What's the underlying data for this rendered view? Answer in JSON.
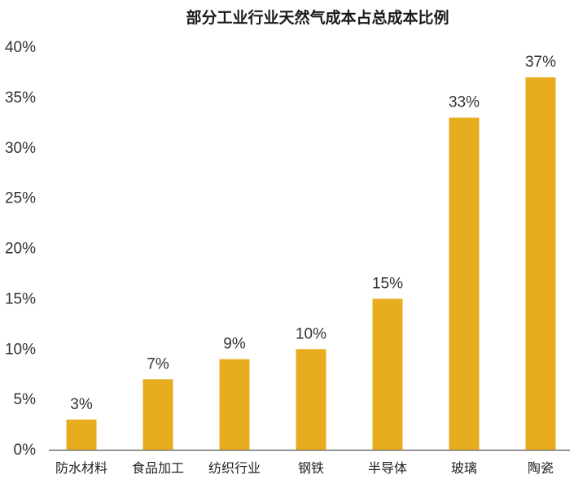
{
  "chart_data": {
    "type": "bar",
    "title": "部分工业行业天然气成本占总成本比例",
    "xlabel": "",
    "ylabel": "",
    "categories": [
      "防水材料",
      "食品加工",
      "纺织行业",
      "钢铁",
      "半导体",
      "玻璃",
      "陶瓷"
    ],
    "values": [
      3,
      7,
      9,
      10,
      15,
      33,
      37
    ],
    "value_labels": [
      "3%",
      "7%",
      "9%",
      "10%",
      "15%",
      "33%",
      "37%"
    ],
    "ylim": [
      0,
      40
    ],
    "yticks": [
      0,
      5,
      10,
      15,
      20,
      25,
      30,
      35,
      40
    ],
    "ytick_labels": [
      "0%",
      "5%",
      "10%",
      "15%",
      "20%",
      "25%",
      "30%",
      "35%",
      "40%"
    ],
    "grid": false,
    "legend": "none",
    "colors": {
      "bar": "#E8AC1F",
      "axis": "#555555",
      "text": "#333333"
    }
  }
}
